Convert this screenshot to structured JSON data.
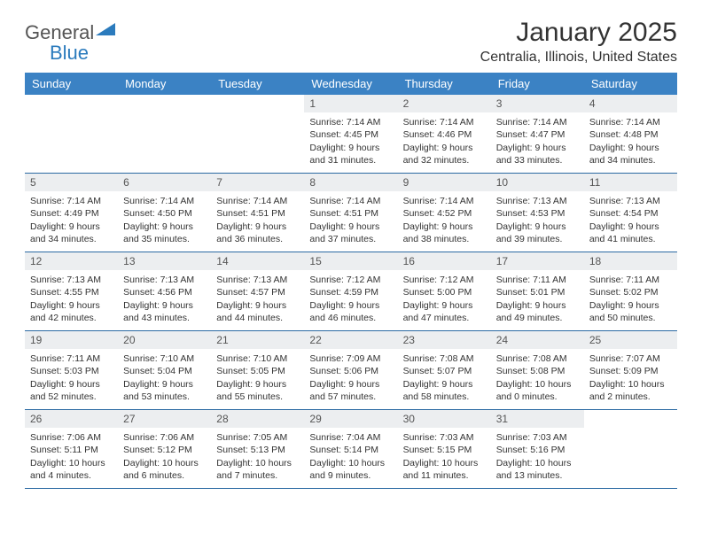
{
  "logo": {
    "text1": "General",
    "text2": "Blue"
  },
  "header": {
    "month": "January 2025",
    "location": "Centralia, Illinois, United States"
  },
  "weekdays": [
    "Sunday",
    "Monday",
    "Tuesday",
    "Wednesday",
    "Thursday",
    "Friday",
    "Saturday"
  ],
  "colors": {
    "header_bg": "#3b82c4",
    "header_text": "#ffffff",
    "daynum_bg": "#eceef0",
    "row_border": "#2b6aa3",
    "text": "#333333",
    "logo_gray": "#555555",
    "logo_blue": "#2b7bbd"
  },
  "weeks": [
    [
      {
        "n": "",
        "sr": "",
        "ss": "",
        "dl": ""
      },
      {
        "n": "",
        "sr": "",
        "ss": "",
        "dl": ""
      },
      {
        "n": "",
        "sr": "",
        "ss": "",
        "dl": ""
      },
      {
        "n": "1",
        "sr": "Sunrise: 7:14 AM",
        "ss": "Sunset: 4:45 PM",
        "dl": "Daylight: 9 hours and 31 minutes."
      },
      {
        "n": "2",
        "sr": "Sunrise: 7:14 AM",
        "ss": "Sunset: 4:46 PM",
        "dl": "Daylight: 9 hours and 32 minutes."
      },
      {
        "n": "3",
        "sr": "Sunrise: 7:14 AM",
        "ss": "Sunset: 4:47 PM",
        "dl": "Daylight: 9 hours and 33 minutes."
      },
      {
        "n": "4",
        "sr": "Sunrise: 7:14 AM",
        "ss": "Sunset: 4:48 PM",
        "dl": "Daylight: 9 hours and 34 minutes."
      }
    ],
    [
      {
        "n": "5",
        "sr": "Sunrise: 7:14 AM",
        "ss": "Sunset: 4:49 PM",
        "dl": "Daylight: 9 hours and 34 minutes."
      },
      {
        "n": "6",
        "sr": "Sunrise: 7:14 AM",
        "ss": "Sunset: 4:50 PM",
        "dl": "Daylight: 9 hours and 35 minutes."
      },
      {
        "n": "7",
        "sr": "Sunrise: 7:14 AM",
        "ss": "Sunset: 4:51 PM",
        "dl": "Daylight: 9 hours and 36 minutes."
      },
      {
        "n": "8",
        "sr": "Sunrise: 7:14 AM",
        "ss": "Sunset: 4:51 PM",
        "dl": "Daylight: 9 hours and 37 minutes."
      },
      {
        "n": "9",
        "sr": "Sunrise: 7:14 AM",
        "ss": "Sunset: 4:52 PM",
        "dl": "Daylight: 9 hours and 38 minutes."
      },
      {
        "n": "10",
        "sr": "Sunrise: 7:13 AM",
        "ss": "Sunset: 4:53 PM",
        "dl": "Daylight: 9 hours and 39 minutes."
      },
      {
        "n": "11",
        "sr": "Sunrise: 7:13 AM",
        "ss": "Sunset: 4:54 PM",
        "dl": "Daylight: 9 hours and 41 minutes."
      }
    ],
    [
      {
        "n": "12",
        "sr": "Sunrise: 7:13 AM",
        "ss": "Sunset: 4:55 PM",
        "dl": "Daylight: 9 hours and 42 minutes."
      },
      {
        "n": "13",
        "sr": "Sunrise: 7:13 AM",
        "ss": "Sunset: 4:56 PM",
        "dl": "Daylight: 9 hours and 43 minutes."
      },
      {
        "n": "14",
        "sr": "Sunrise: 7:13 AM",
        "ss": "Sunset: 4:57 PM",
        "dl": "Daylight: 9 hours and 44 minutes."
      },
      {
        "n": "15",
        "sr": "Sunrise: 7:12 AM",
        "ss": "Sunset: 4:59 PM",
        "dl": "Daylight: 9 hours and 46 minutes."
      },
      {
        "n": "16",
        "sr": "Sunrise: 7:12 AM",
        "ss": "Sunset: 5:00 PM",
        "dl": "Daylight: 9 hours and 47 minutes."
      },
      {
        "n": "17",
        "sr": "Sunrise: 7:11 AM",
        "ss": "Sunset: 5:01 PM",
        "dl": "Daylight: 9 hours and 49 minutes."
      },
      {
        "n": "18",
        "sr": "Sunrise: 7:11 AM",
        "ss": "Sunset: 5:02 PM",
        "dl": "Daylight: 9 hours and 50 minutes."
      }
    ],
    [
      {
        "n": "19",
        "sr": "Sunrise: 7:11 AM",
        "ss": "Sunset: 5:03 PM",
        "dl": "Daylight: 9 hours and 52 minutes."
      },
      {
        "n": "20",
        "sr": "Sunrise: 7:10 AM",
        "ss": "Sunset: 5:04 PM",
        "dl": "Daylight: 9 hours and 53 minutes."
      },
      {
        "n": "21",
        "sr": "Sunrise: 7:10 AM",
        "ss": "Sunset: 5:05 PM",
        "dl": "Daylight: 9 hours and 55 minutes."
      },
      {
        "n": "22",
        "sr": "Sunrise: 7:09 AM",
        "ss": "Sunset: 5:06 PM",
        "dl": "Daylight: 9 hours and 57 minutes."
      },
      {
        "n": "23",
        "sr": "Sunrise: 7:08 AM",
        "ss": "Sunset: 5:07 PM",
        "dl": "Daylight: 9 hours and 58 minutes."
      },
      {
        "n": "24",
        "sr": "Sunrise: 7:08 AM",
        "ss": "Sunset: 5:08 PM",
        "dl": "Daylight: 10 hours and 0 minutes."
      },
      {
        "n": "25",
        "sr": "Sunrise: 7:07 AM",
        "ss": "Sunset: 5:09 PM",
        "dl": "Daylight: 10 hours and 2 minutes."
      }
    ],
    [
      {
        "n": "26",
        "sr": "Sunrise: 7:06 AM",
        "ss": "Sunset: 5:11 PM",
        "dl": "Daylight: 10 hours and 4 minutes."
      },
      {
        "n": "27",
        "sr": "Sunrise: 7:06 AM",
        "ss": "Sunset: 5:12 PM",
        "dl": "Daylight: 10 hours and 6 minutes."
      },
      {
        "n": "28",
        "sr": "Sunrise: 7:05 AM",
        "ss": "Sunset: 5:13 PM",
        "dl": "Daylight: 10 hours and 7 minutes."
      },
      {
        "n": "29",
        "sr": "Sunrise: 7:04 AM",
        "ss": "Sunset: 5:14 PM",
        "dl": "Daylight: 10 hours and 9 minutes."
      },
      {
        "n": "30",
        "sr": "Sunrise: 7:03 AM",
        "ss": "Sunset: 5:15 PM",
        "dl": "Daylight: 10 hours and 11 minutes."
      },
      {
        "n": "31",
        "sr": "Sunrise: 7:03 AM",
        "ss": "Sunset: 5:16 PM",
        "dl": "Daylight: 10 hours and 13 minutes."
      },
      {
        "n": "",
        "sr": "",
        "ss": "",
        "dl": ""
      }
    ]
  ]
}
